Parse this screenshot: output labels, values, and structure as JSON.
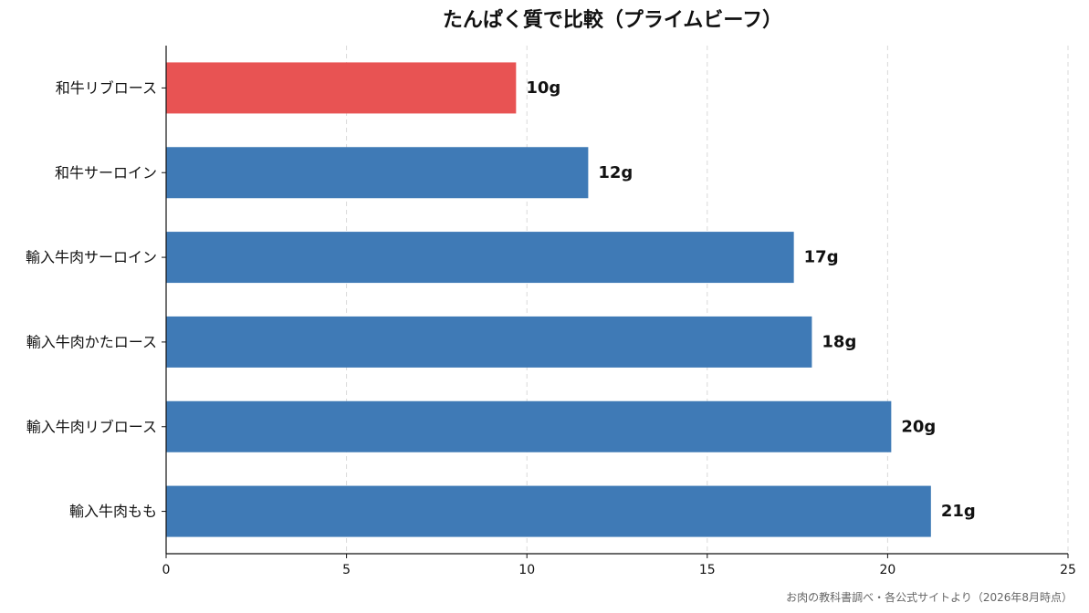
{
  "chart_data": {
    "type": "bar",
    "orientation": "horizontal",
    "title": "たんぱく質で比較（プライムビーフ）",
    "categories": [
      "和牛リブロース",
      "和牛サーロイン",
      "輸入牛肉サーロイン",
      "輸入牛肉かたロース",
      "輸入牛肉リブロース",
      "輸入牛肉もも"
    ],
    "values": [
      9.7,
      11.7,
      17.4,
      17.9,
      20.1,
      21.2
    ],
    "value_labels": [
      "10g",
      "12g",
      "17g",
      "18g",
      "20g",
      "21g"
    ],
    "bar_colors": [
      "#e85353",
      "#3f7ab6",
      "#3f7ab6",
      "#3f7ab6",
      "#3f7ab6",
      "#3f7ab6"
    ],
    "xlim": [
      0,
      25
    ],
    "xticks": [
      0,
      5,
      10,
      15,
      20,
      25
    ],
    "xtick_labels": [
      "0",
      "5",
      "10",
      "15",
      "20",
      "25"
    ],
    "grid": "vertical dashed",
    "source": "お肉の教科書調べ・各公式サイトより（2026年8月時点）"
  }
}
